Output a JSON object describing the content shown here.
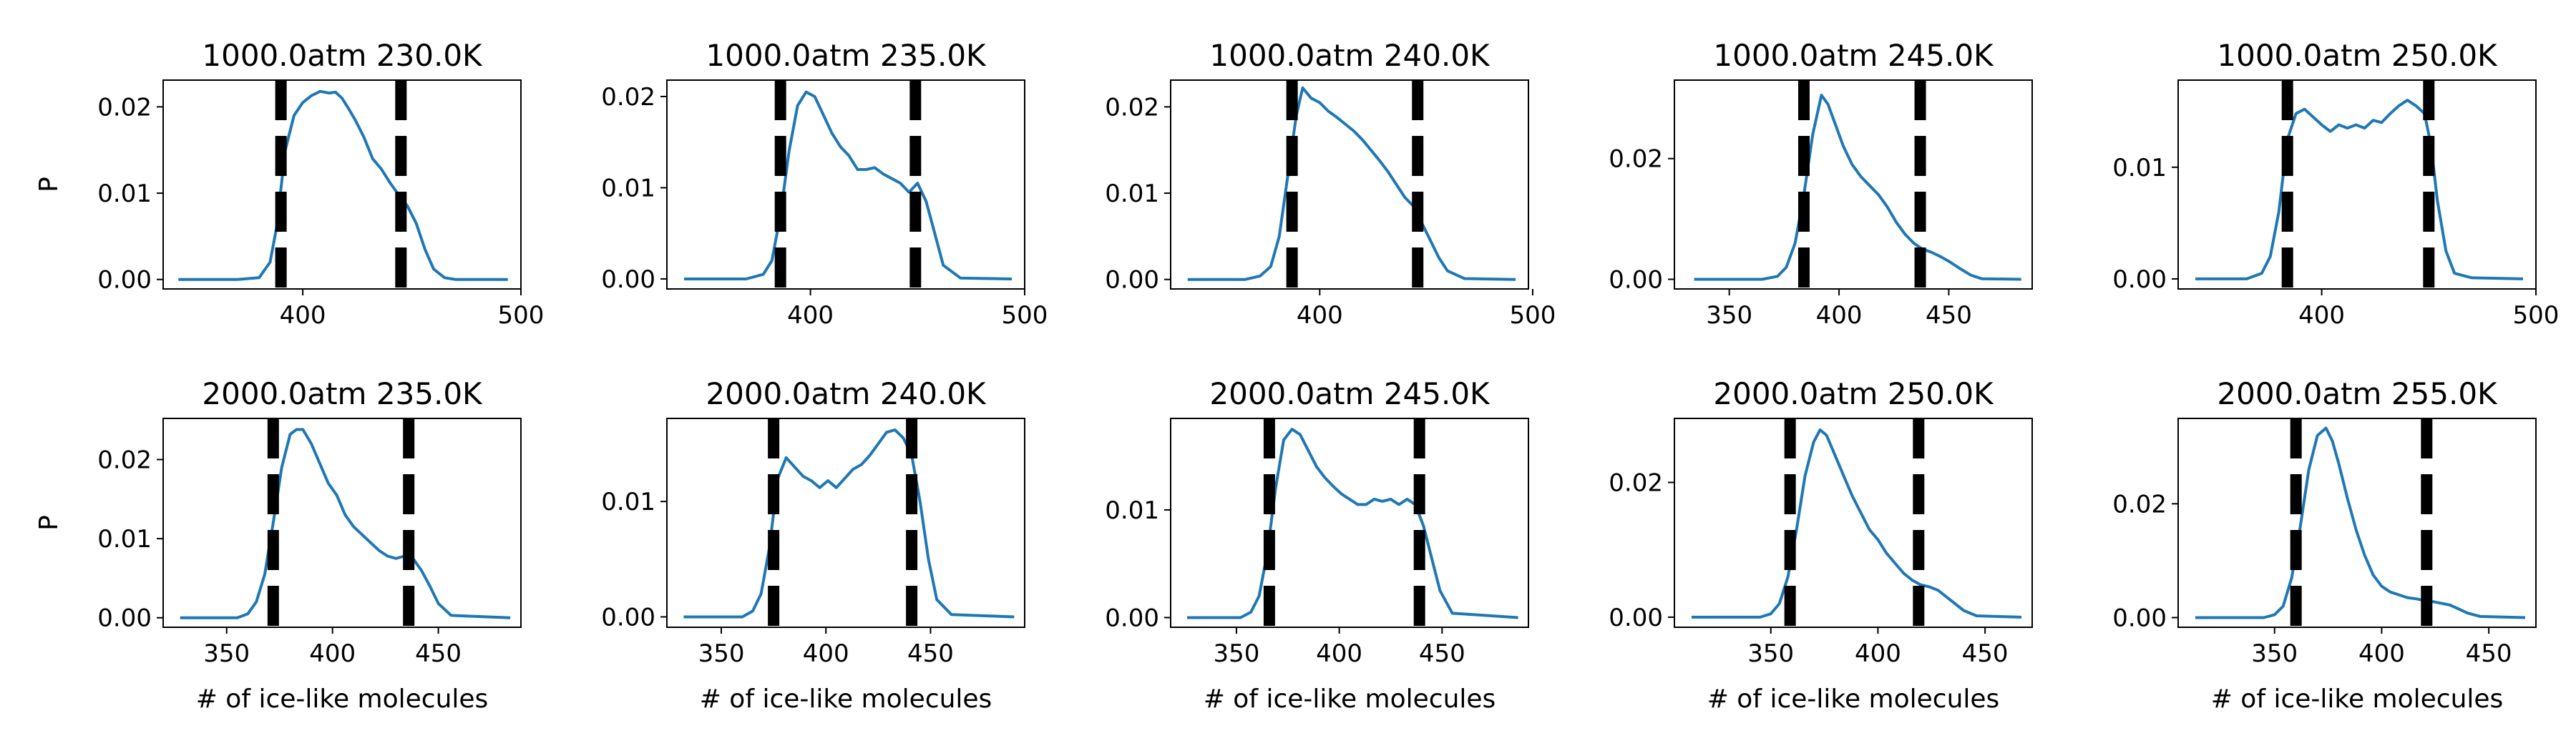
{
  "chart_data": [
    {
      "type": "line",
      "title": "1000.0atm 230.0K",
      "xlabel": "",
      "ylabel": "P",
      "xlim": [
        336,
        500
      ],
      "ylim": [
        -0.0011,
        0.0231
      ],
      "xticks": [
        400,
        500
      ],
      "xtick_labels": [
        "400",
        "500"
      ],
      "yticks": [
        0,
        0.01,
        0.02
      ],
      "ytick_labels": [
        "0.00",
        "0.01",
        "0.02"
      ],
      "vlines": [
        390,
        445
      ],
      "series": [
        {
          "x": [
            343,
            370,
            380,
            385,
            388,
            392,
            396,
            400,
            404,
            408,
            412,
            415,
            418,
            421,
            424,
            428,
            432,
            436,
            440,
            444,
            448,
            452,
            456,
            460,
            465,
            470,
            494
          ],
          "y": [
            0,
            0,
            0.0002,
            0.002,
            0.006,
            0.015,
            0.019,
            0.0205,
            0.0213,
            0.0218,
            0.0216,
            0.0217,
            0.021,
            0.0198,
            0.0185,
            0.0165,
            0.014,
            0.0128,
            0.0112,
            0.0098,
            0.0085,
            0.0065,
            0.0035,
            0.0012,
            0.0002,
            0,
            0
          ]
        }
      ]
    },
    {
      "type": "line",
      "title": "1000.0atm 235.0K",
      "xlabel": "",
      "ylabel": "",
      "xlim": [
        333,
        500
      ],
      "ylim": [
        -0.0011,
        0.0218
      ],
      "xticks": [
        400,
        500
      ],
      "xtick_labels": [
        "400",
        "500"
      ],
      "yticks": [
        0,
        0.01,
        0.02
      ],
      "ytick_labels": [
        "0.00",
        "0.01",
        "0.02"
      ],
      "vlines": [
        386,
        449
      ],
      "series": [
        {
          "x": [
            341,
            370,
            378,
            382,
            386,
            390,
            394,
            398,
            402,
            406,
            410,
            414,
            418,
            422,
            426,
            430,
            434,
            438,
            442,
            446,
            450,
            454,
            458,
            462,
            470,
            494
          ],
          "y": [
            0,
            0,
            0.0005,
            0.002,
            0.007,
            0.014,
            0.019,
            0.0205,
            0.02,
            0.018,
            0.016,
            0.0145,
            0.0135,
            0.012,
            0.012,
            0.0122,
            0.0115,
            0.011,
            0.0105,
            0.0095,
            0.0105,
            0.0085,
            0.005,
            0.0015,
            0.0001,
            0
          ]
        }
      ]
    },
    {
      "type": "line",
      "title": "1000.0atm 240.0K",
      "xlabel": "",
      "ylabel": "",
      "xlim": [
        330,
        498
      ],
      "ylim": [
        -0.0011,
        0.0231
      ],
      "xticks": [
        400,
        500
      ],
      "xtick_labels": [
        "400",
        "500"
      ],
      "yticks": [
        0,
        0.01,
        0.02
      ],
      "ytick_labels": [
        "0.00",
        "0.01",
        "0.02"
      ],
      "vlines": [
        387,
        446
      ],
      "series": [
        {
          "x": [
            338,
            365,
            372,
            377,
            381,
            385,
            389,
            392,
            396,
            400,
            404,
            408,
            412,
            416,
            420,
            424,
            428,
            432,
            436,
            440,
            444,
            448,
            452,
            456,
            460,
            468,
            492
          ],
          "y": [
            0,
            0,
            0.0004,
            0.0015,
            0.005,
            0.012,
            0.019,
            0.0222,
            0.021,
            0.0205,
            0.0195,
            0.0188,
            0.018,
            0.0172,
            0.0162,
            0.015,
            0.0138,
            0.0125,
            0.011,
            0.0095,
            0.0085,
            0.0065,
            0.0045,
            0.0025,
            0.001,
            0.0001,
            0
          ]
        }
      ]
    },
    {
      "type": "line",
      "title": "1000.0atm 245.0K",
      "xlabel": "",
      "ylabel": "",
      "xlim": [
        325,
        488
      ],
      "ylim": [
        -0.0016,
        0.033
      ],
      "xticks": [
        350,
        400,
        450
      ],
      "xtick_labels": [
        "350",
        "400",
        "450"
      ],
      "yticks": [
        0,
        0.02
      ],
      "ytick_labels": [
        "0.00",
        "0.02"
      ],
      "vlines": [
        384,
        437
      ],
      "series": [
        {
          "x": [
            334,
            365,
            372,
            376,
            380,
            384,
            388,
            392,
            395,
            398,
            402,
            406,
            410,
            414,
            418,
            422,
            426,
            430,
            434,
            438,
            442,
            446,
            450,
            455,
            460,
            465,
            483
          ],
          "y": [
            0,
            0,
            0.0005,
            0.002,
            0.006,
            0.014,
            0.024,
            0.0305,
            0.029,
            0.026,
            0.022,
            0.019,
            0.017,
            0.0155,
            0.014,
            0.012,
            0.0095,
            0.0075,
            0.006,
            0.005,
            0.0045,
            0.0038,
            0.003,
            0.0018,
            0.0007,
            0.0001,
            0
          ]
        }
      ]
    },
    {
      "type": "line",
      "title": "1000.0atm 250.0K",
      "xlabel": "",
      "ylabel": "",
      "xlim": [
        333,
        500
      ],
      "ylim": [
        -0.0009,
        0.0178
      ],
      "xticks": [
        400,
        500
      ],
      "xtick_labels": [
        "400",
        "500"
      ],
      "yticks": [
        0,
        0.01
      ],
      "ytick_labels": [
        "0.00",
        "0.01"
      ],
      "vlines": [
        384,
        450
      ],
      "series": [
        {
          "x": [
            341,
            365,
            372,
            376,
            380,
            384,
            388,
            392,
            396,
            400,
            404,
            408,
            412,
            416,
            420,
            424,
            428,
            432,
            436,
            440,
            444,
            448,
            451,
            454,
            458,
            462,
            470,
            494
          ],
          "y": [
            0,
            0,
            0.0005,
            0.002,
            0.006,
            0.0125,
            0.0148,
            0.0152,
            0.0145,
            0.0138,
            0.0132,
            0.0138,
            0.0135,
            0.0138,
            0.0135,
            0.0142,
            0.014,
            0.0148,
            0.0155,
            0.016,
            0.0155,
            0.0148,
            0.012,
            0.007,
            0.0025,
            0.0005,
            0.0001,
            0
          ]
        }
      ]
    },
    {
      "type": "line",
      "title": "2000.0atm 235.0K",
      "xlabel": "# of ice-like molecules",
      "ylabel": "P",
      "xlim": [
        320,
        489
      ],
      "ylim": [
        -0.0012,
        0.0252
      ],
      "xticks": [
        350,
        400,
        450
      ],
      "xtick_labels": [
        "350",
        "400",
        "450"
      ],
      "yticks": [
        0,
        0.01,
        0.02
      ],
      "ytick_labels": [
        "0.00",
        "0.01",
        "0.02"
      ],
      "vlines": [
        372,
        436
      ],
      "series": [
        {
          "x": [
            328,
            355,
            360,
            364,
            368,
            372,
            376,
            380,
            383,
            386,
            390,
            394,
            398,
            402,
            406,
            410,
            414,
            418,
            422,
            426,
            430,
            434,
            438,
            442,
            446,
            450,
            456,
            484
          ],
          "y": [
            0,
            0,
            0.0005,
            0.002,
            0.0055,
            0.012,
            0.019,
            0.0232,
            0.0238,
            0.0238,
            0.022,
            0.0195,
            0.017,
            0.0155,
            0.013,
            0.0115,
            0.0105,
            0.0095,
            0.0085,
            0.0078,
            0.0075,
            0.0078,
            0.0075,
            0.006,
            0.004,
            0.0018,
            0.0003,
            0
          ]
        }
      ]
    },
    {
      "type": "line",
      "title": "2000.0atm 240.0K",
      "xlabel": "# of ice-like molecules",
      "ylabel": "",
      "xlim": [
        324,
        495
      ],
      "ylim": [
        -0.0009,
        0.0172
      ],
      "xticks": [
        350,
        400,
        450
      ],
      "xtick_labels": [
        "350",
        "400",
        "450"
      ],
      "yticks": [
        0,
        0.01
      ],
      "ytick_labels": [
        "0.00",
        "0.01"
      ],
      "vlines": [
        375,
        441
      ],
      "series": [
        {
          "x": [
            332,
            360,
            365,
            369,
            373,
            377,
            381,
            385,
            389,
            393,
            397,
            401,
            405,
            409,
            413,
            417,
            421,
            425,
            429,
            433,
            437,
            441,
            445,
            449,
            453,
            460,
            490
          ],
          "y": [
            0,
            0,
            0.0005,
            0.002,
            0.006,
            0.012,
            0.0138,
            0.013,
            0.0122,
            0.0118,
            0.0112,
            0.0118,
            0.0112,
            0.012,
            0.0128,
            0.0132,
            0.014,
            0.015,
            0.016,
            0.0162,
            0.0155,
            0.014,
            0.01,
            0.005,
            0.0015,
            0.0002,
            0
          ]
        }
      ]
    },
    {
      "type": "line",
      "title": "2000.0atm 245.0K",
      "xlabel": "# of ice-like molecules",
      "ylabel": "",
      "xlim": [
        318,
        492
      ],
      "ylim": [
        -0.0009,
        0.0185
      ],
      "xticks": [
        350,
        400,
        450
      ],
      "xtick_labels": [
        "350",
        "400",
        "450"
      ],
      "yticks": [
        0,
        0.01
      ],
      "ytick_labels": [
        "0.00",
        "0.01"
      ],
      "vlines": [
        366,
        439
      ],
      "series": [
        {
          "x": [
            326,
            352,
            357,
            361,
            365,
            369,
            373,
            377,
            381,
            385,
            389,
            393,
            397,
            401,
            405,
            409,
            413,
            417,
            421,
            425,
            429,
            433,
            437,
            441,
            445,
            449,
            455,
            487
          ],
          "y": [
            0,
            0,
            0.0005,
            0.002,
            0.006,
            0.012,
            0.0165,
            0.0175,
            0.017,
            0.0155,
            0.014,
            0.013,
            0.0122,
            0.0115,
            0.011,
            0.0105,
            0.0105,
            0.011,
            0.0108,
            0.011,
            0.0105,
            0.011,
            0.0105,
            0.0085,
            0.0055,
            0.0025,
            0.0004,
            0
          ]
        }
      ]
    },
    {
      "type": "line",
      "title": "2000.0atm 250.0K",
      "xlabel": "# of ice-like molecules",
      "ylabel": "",
      "xlim": [
        305,
        472
      ],
      "ylim": [
        -0.0015,
        0.0295
      ],
      "xticks": [
        350,
        400,
        450
      ],
      "xtick_labels": [
        "350",
        "400",
        "450"
      ],
      "yticks": [
        0,
        0.02
      ],
      "ytick_labels": [
        "0.00",
        "0.02"
      ],
      "vlines": [
        359,
        419
      ],
      "series": [
        {
          "x": [
            313,
            345,
            350,
            354,
            358,
            362,
            366,
            370,
            373,
            376,
            380,
            384,
            388,
            392,
            396,
            400,
            404,
            408,
            412,
            416,
            420,
            424,
            428,
            432,
            436,
            440,
            446,
            467
          ],
          "y": [
            0,
            0,
            0.0005,
            0.002,
            0.006,
            0.013,
            0.021,
            0.026,
            0.0278,
            0.027,
            0.024,
            0.021,
            0.018,
            0.0155,
            0.013,
            0.0115,
            0.0095,
            0.008,
            0.0065,
            0.0055,
            0.0048,
            0.0045,
            0.004,
            0.003,
            0.002,
            0.001,
            0.0002,
            0
          ]
        }
      ]
    },
    {
      "type": "line",
      "title": "2000.0atm 255.0K",
      "xlabel": "# of ice-like molecules",
      "ylabel": "",
      "xlim": [
        305,
        472
      ],
      "ylim": [
        -0.0017,
        0.035
      ],
      "xticks": [
        350,
        400,
        450
      ],
      "xtick_labels": [
        "350",
        "400",
        "450"
      ],
      "yticks": [
        0,
        0.02
      ],
      "ytick_labels": [
        "0.00",
        "0.02"
      ],
      "vlines": [
        360,
        421
      ],
      "series": [
        {
          "x": [
            313,
            345,
            350,
            354,
            358,
            362,
            366,
            370,
            374,
            377,
            380,
            384,
            388,
            392,
            396,
            400,
            404,
            408,
            412,
            416,
            420,
            424,
            428,
            432,
            436,
            440,
            446,
            467
          ],
          "y": [
            0,
            0,
            0.0005,
            0.002,
            0.007,
            0.016,
            0.026,
            0.032,
            0.0333,
            0.031,
            0.027,
            0.021,
            0.0155,
            0.011,
            0.0075,
            0.0055,
            0.0045,
            0.004,
            0.0035,
            0.0033,
            0.003,
            0.0028,
            0.0025,
            0.0022,
            0.0015,
            0.0008,
            0.0002,
            0
          ]
        }
      ]
    }
  ]
}
